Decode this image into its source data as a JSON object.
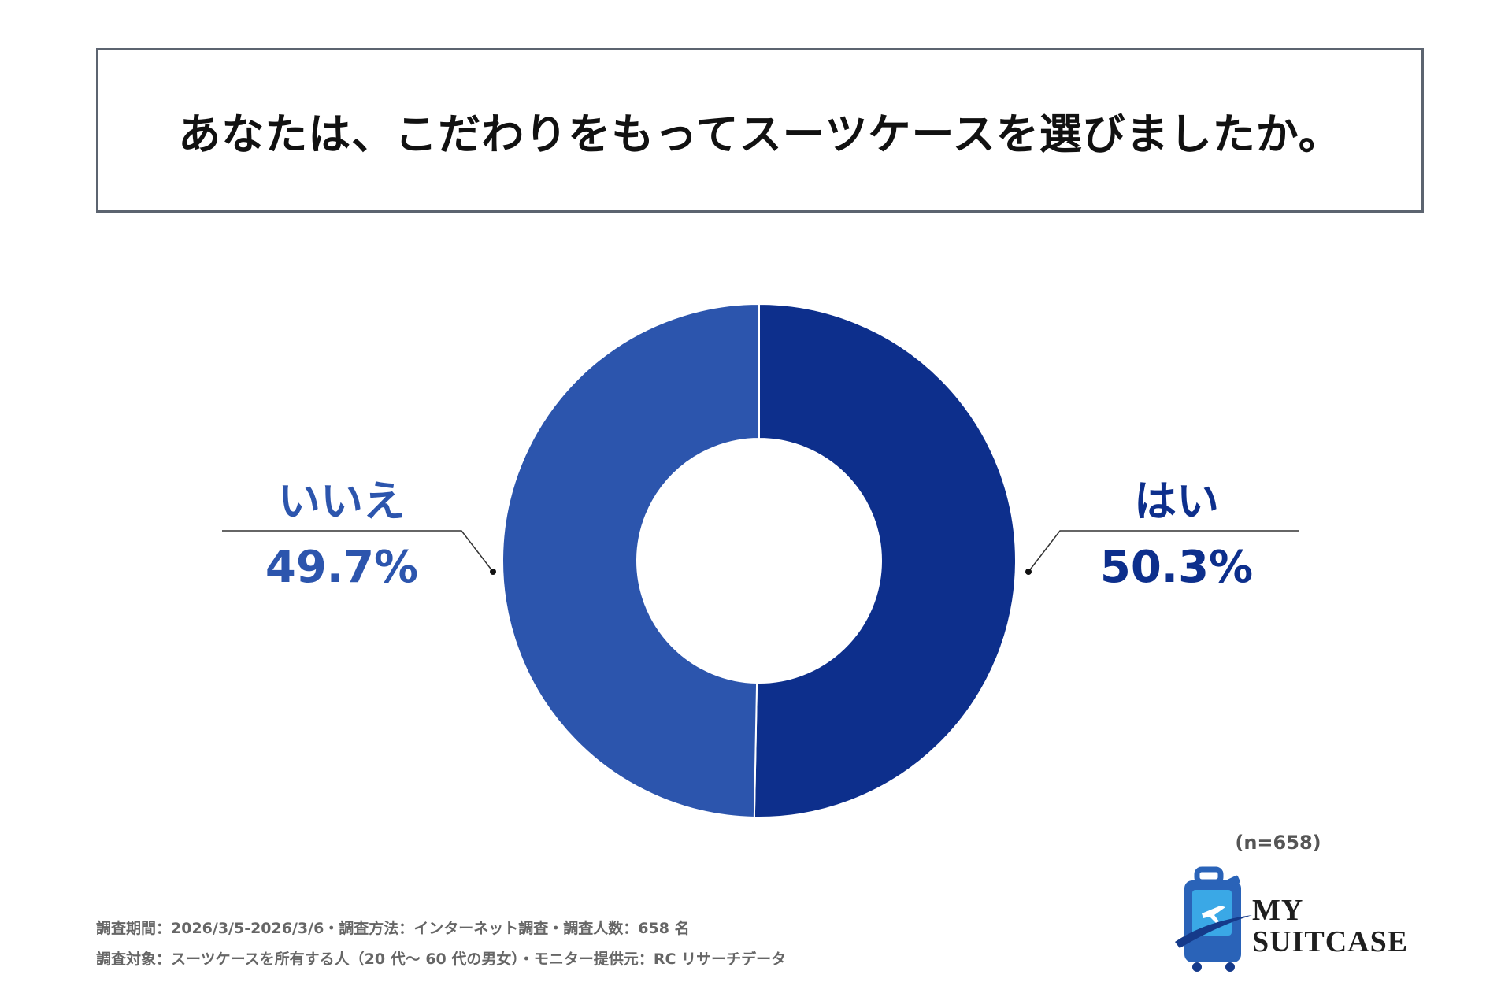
{
  "title": "あなたは、こだわりをもってスーツケースを選びましたか。",
  "chart_data": {
    "type": "pie",
    "donut": true,
    "series": [
      {
        "label": "はい",
        "value": 50.3,
        "value_label": "50.3%",
        "color": "#0d2f8c"
      },
      {
        "label": "いいえ",
        "value": 49.7,
        "value_label": "49.7%",
        "color": "#2c55ad"
      }
    ],
    "sample_size": "(n=658)"
  },
  "footnotes": {
    "line1": "調査期間：2026/3/5-2026/3/6・調査方法：インターネット調査・調査人数：658 名",
    "line2": "調査対象：スーツケースを所有する人（20 代～ 60 代の男女）・モニター提供元：RC リサーチデータ"
  },
  "logo": {
    "line1": "MY",
    "line2": "SUITCASE",
    "colors": {
      "case": "#2a63b8",
      "panel": "#3aa8e6",
      "swoosh": "#153a8a"
    }
  }
}
